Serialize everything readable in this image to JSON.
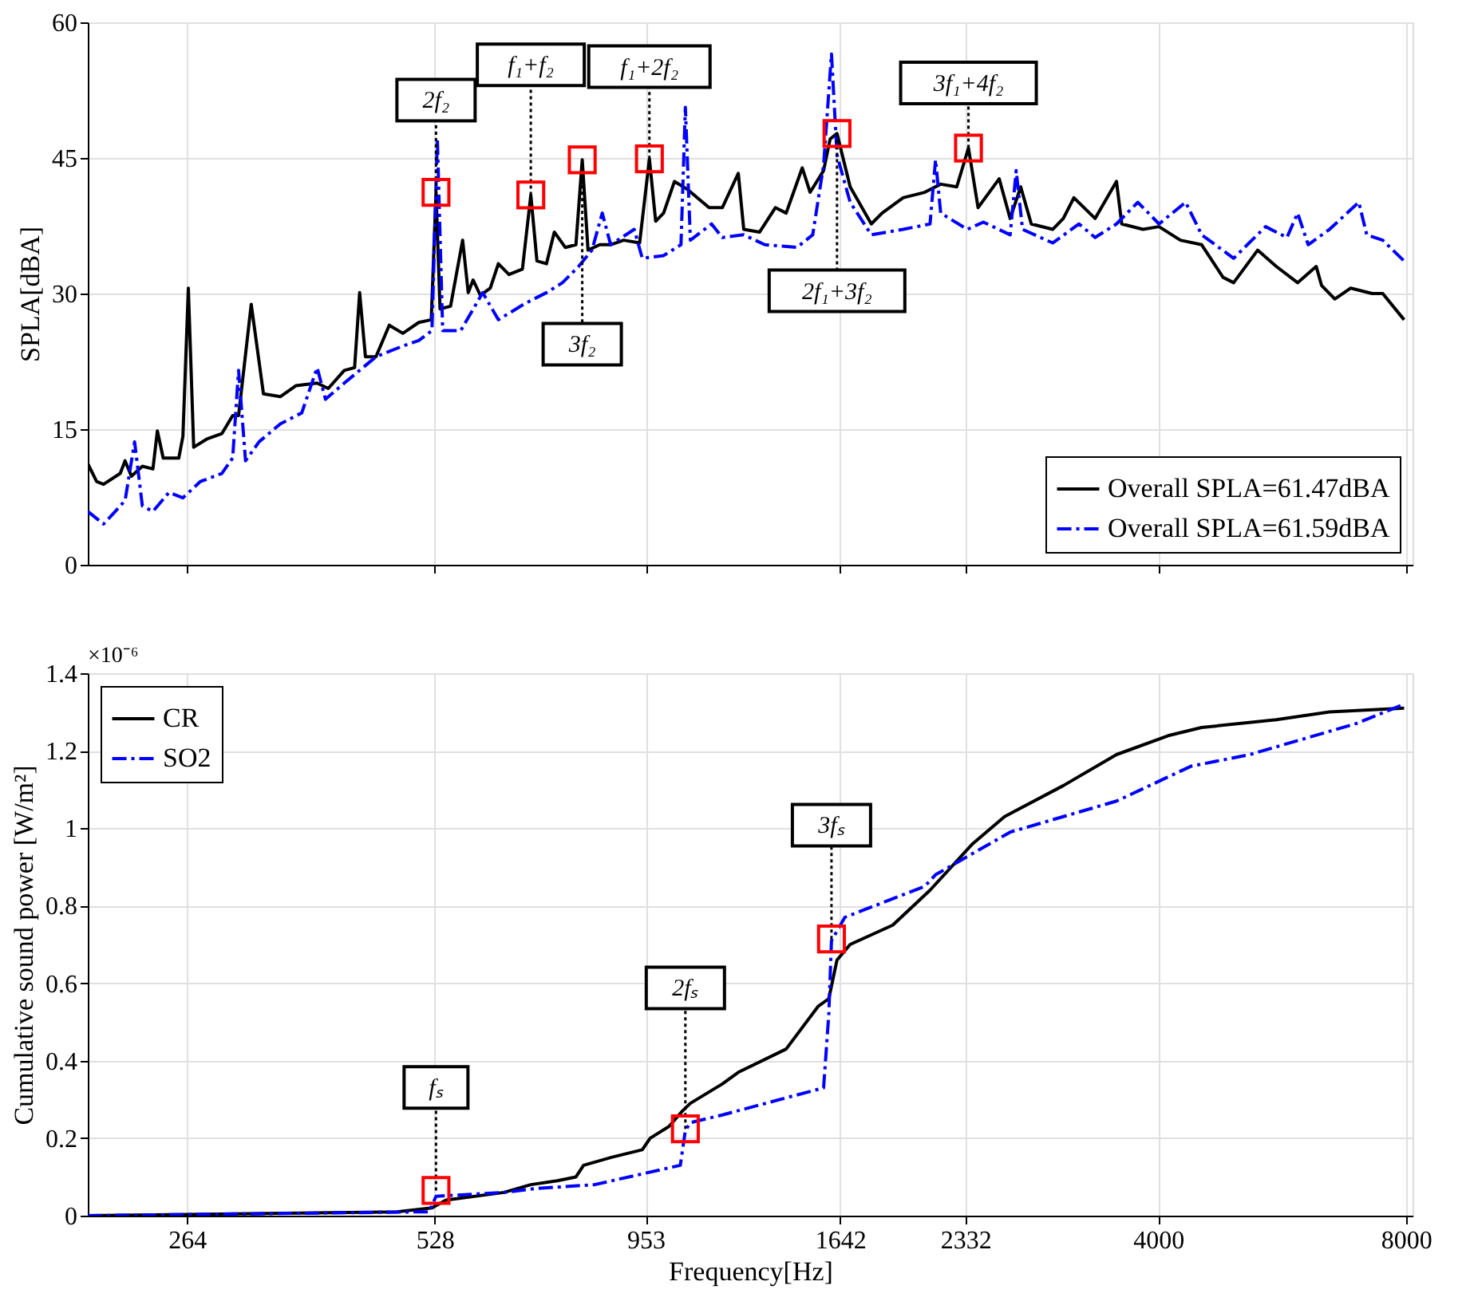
{
  "chart_data": [
    {
      "type": "line",
      "ylabel": "SPLA[dBA]",
      "log": "x",
      "xlim": [
        200,
        8150
      ],
      "xticks": [
        264,
        528,
        953,
        1642,
        2332,
        4000,
        8000
      ],
      "ylim": [
        0,
        60
      ],
      "yticks": [
        0,
        15,
        30,
        45,
        60
      ],
      "grid": true,
      "legend": "bottom right",
      "tick_labels": "y",
      "series": [
        {
          "name": "Overall SPLA=61.47dBA",
          "color": "#000000",
          "line_style": "solid",
          "x": [
            200,
            205,
            209,
            219,
            222,
            226,
            233,
            240,
            243,
            247,
            258,
            261,
            265,
            269,
            279,
            291,
            300,
            305,
            316,
            327,
            343,
            358,
            380,
            392,
            410,
            422,
            428,
            435,
            448,
            465,
            483,
            505,
            523,
            530,
            536,
            552,
            571,
            580,
            588,
            600,
            617,
            631,
            650,
            675,
            691,
            703,
            722,
            738,
            761,
            784,
            798,
            811,
            838,
            864,
            896,
            937,
            963,
            980,
            1002,
            1033,
            1072,
            1138,
            1181,
            1235,
            1254,
            1311,
            1370,
            1412,
            1477,
            1510,
            1568,
            1597,
            1628,
            1689,
            1792,
            1847,
            1959,
            2081,
            2176,
            2276,
            2352,
            2416,
            2563,
            2643,
            2722,
            2804,
            2977,
            3067,
            3159,
            3352,
            3559,
            3612,
            3833,
            4009,
            4256,
            4517,
            4795,
            4940,
            5283,
            5566,
            5908,
            6224,
            6318,
            6557,
            6856,
            7279,
            7498,
            7960
          ],
          "values": [
            11.2,
            9.2,
            8.9,
            10.1,
            11.5,
            9.8,
            10.9,
            10.6,
            14.8,
            11.8,
            11.8,
            14.2,
            30.6,
            13,
            13.9,
            14.5,
            16.5,
            16.5,
            28.8,
            18.9,
            18.6,
            19.8,
            20.1,
            19.5,
            21.5,
            21.8,
            30.1,
            23,
            23,
            26.5,
            25.6,
            26.8,
            27.1,
            41.2,
            28.3,
            28.6,
            35.9,
            30.1,
            31.5,
            29.8,
            30.6,
            33.3,
            32.1,
            32.7,
            40.9,
            33.6,
            33.3,
            36.8,
            35.1,
            35.4,
            44.8,
            34.8,
            35.4,
            35.4,
            35.9,
            35.6,
            44.9,
            38,
            38.9,
            42.4,
            41.5,
            39.5,
            39.5,
            43.3,
            37.1,
            36.8,
            39.5,
            38.9,
            43.9,
            41.2,
            43.6,
            47.1,
            47.7,
            41.8,
            37.7,
            38.9,
            40.6,
            41.2,
            42.1,
            41.8,
            46.1,
            39.5,
            42.7,
            38.3,
            41.8,
            37.7,
            37.1,
            38.3,
            40.6,
            38.3,
            42.4,
            37.7,
            37.1,
            37.4,
            35.9,
            35.4,
            31.8,
            31.2,
            34.8,
            33,
            31.2,
            33,
            30.9,
            29.4,
            30.6,
            30,
            30,
            27.1
          ]
        },
        {
          "name": "Overall SPLA=61.59dBA",
          "color": "#0000ff",
          "line_style": "dashed",
          "x": [
            200,
            209,
            216,
            222,
            228,
            233,
            240,
            251,
            261,
            274,
            291,
            300,
            305,
            311,
            323,
            343,
            364,
            380,
            389,
            410,
            448,
            483,
            505,
            524,
            532,
            540,
            568,
            604,
            631,
            680,
            722,
            755,
            790,
            820,
            844,
            864,
            923,
            944,
            1002,
            1052,
            1065,
            1080,
            1146,
            1181,
            1254,
            1330,
            1455,
            1521,
            1568,
            1603,
            1628,
            1689,
            1792,
            1959,
            2112,
            2145,
            2176,
            2345,
            2452,
            2643,
            2688,
            2736,
            2977,
            3205,
            3352,
            3559,
            3778,
            4009,
            4319,
            4517,
            4940,
            5402,
            5735,
            5908,
            6086,
            6460,
            7012,
            7170,
            7498,
            7960
          ],
          "values": [
            5.9,
            4.5,
            5.9,
            7.1,
            13.6,
            6.5,
            5.9,
            8,
            7.4,
            9.2,
            10.1,
            11.8,
            21.5,
            11.5,
            13.6,
            15.6,
            16.8,
            21.8,
            18.3,
            20.1,
            23,
            24.2,
            24.8,
            25.9,
            47.1,
            25.9,
            25.9,
            30.1,
            27.1,
            28.9,
            30.1,
            31.2,
            33,
            34.8,
            38.9,
            35.4,
            37.1,
            33.9,
            34.2,
            35.4,
            50.6,
            35.9,
            37.7,
            36.2,
            36.5,
            35.4,
            35.1,
            36.5,
            44.2,
            56.5,
            45.3,
            40.1,
            36.5,
            37.1,
            37.7,
            44.8,
            38.9,
            37.1,
            37.9,
            36.5,
            43.6,
            37.1,
            35.6,
            37.7,
            36.2,
            37.7,
            40.1,
            37.7,
            40.1,
            36.5,
            33.9,
            37.4,
            36.2,
            38.9,
            35.4,
            37.1,
            40.1,
            36.5,
            35.9,
            33.6
          ]
        }
      ],
      "annotations": [
        {
          "text": "2f₂",
          "x": 530,
          "y": 41.2
        },
        {
          "text": "f₁+f₂",
          "x": 691,
          "y": 40.9
        },
        {
          "text": "3f₂",
          "x": 798,
          "y": 44.8
        },
        {
          "text": "f₁+2f₂",
          "x": 963,
          "y": 44.9
        },
        {
          "text": "2f₁+3f₂",
          "x": 1628,
          "y": 47.7
        },
        {
          "text": "3f₁+4f₂",
          "x": 2352,
          "y": 46.1
        }
      ]
    },
    {
      "type": "line",
      "xlabel": "Frequency[Hz]",
      "ylabel": "Cumulative sound power [W/m²]",
      "log": "x",
      "xlim": [
        200,
        8150
      ],
      "xticks": [
        264,
        528,
        953,
        1642,
        2332,
        4000,
        8000
      ],
      "ylim": [
        0,
        1.4
      ],
      "yticks": [
        0,
        0.2,
        0.4,
        0.6,
        0.8,
        1,
        1.2,
        1.4
      ],
      "grid": true,
      "legend": "top left",
      "series": [
        {
          "name": "CR",
          "color": "#000000",
          "line_style": "solid",
          "x": [
            200,
            475,
            524,
            545,
            641,
            691,
            744,
            784,
            801,
            864,
            944,
            965,
            1017,
            1056,
            1080,
            1181,
            1235,
            1412,
            1544,
            1591,
            1628,
            1689,
            1903,
            2112,
            2380,
            2602,
            3067,
            3559,
            4131,
            4517,
            5566,
            6460,
            7960
          ],
          "values": [
            0,
            0.01,
            0.02,
            0.04,
            0.06,
            0.08,
            0.09,
            0.1,
            0.13,
            0.15,
            0.17,
            0.2,
            0.23,
            0.27,
            0.29,
            0.34,
            0.37,
            0.43,
            0.54,
            0.56,
            0.66,
            0.7,
            0.75,
            0.84,
            0.96,
            1.03,
            1.11,
            1.19,
            1.24,
            1.26,
            1.28,
            1.3,
            1.31
          ]
        },
        {
          "name": "SO2",
          "color": "#0000ff",
          "line_style": "dashed",
          "x": [
            200,
            520,
            530,
            641,
            701,
            826,
            1050,
            1065,
            1080,
            1181,
            1568,
            1591,
            1603,
            1664,
            2081,
            2145,
            2643,
            3559,
            4384,
            5167,
            6958,
            7960
          ],
          "values": [
            0,
            0.01,
            0.05,
            0.06,
            0.07,
            0.08,
            0.13,
            0.22,
            0.24,
            0.26,
            0.33,
            0.52,
            0.71,
            0.77,
            0.85,
            0.88,
            0.99,
            1.07,
            1.16,
            1.19,
            1.27,
            1.32
          ]
        }
      ],
      "annotations": [
        "×10⁻⁶",
        {
          "text": "fₛ",
          "x": 530,
          "y": 0.065
        },
        {
          "text": "2fₛ",
          "x": 1065,
          "y": 0.224
        },
        {
          "text": "3fₛ",
          "x": 1603,
          "y": 0.714
        }
      ]
    }
  ]
}
